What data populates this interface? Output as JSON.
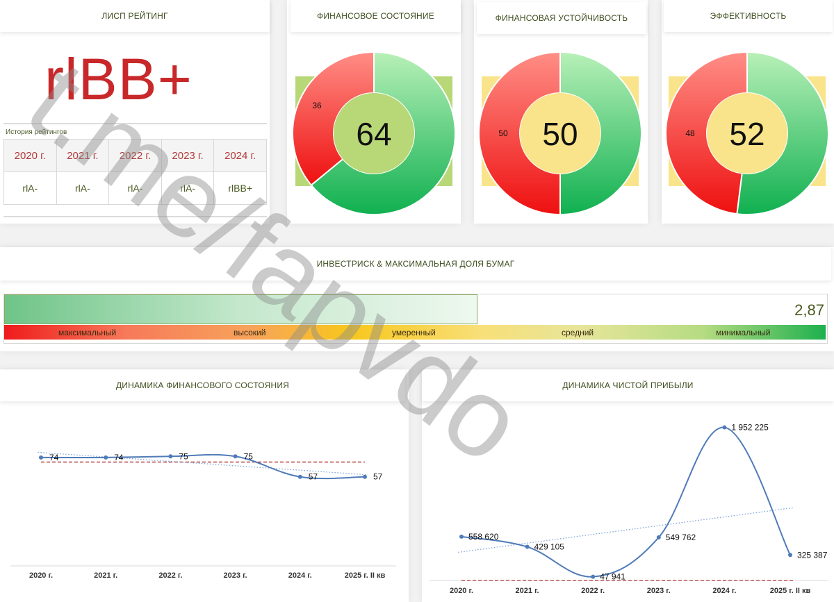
{
  "rating_panel": {
    "header": "ЛИСП РЕЙТИНГ",
    "current_rating": "rlBB+",
    "history_caption": "История рейтингов",
    "history": [
      {
        "year": "2020 г.",
        "rating": "rlA-"
      },
      {
        "year": "2021 г.",
        "rating": "rlA-"
      },
      {
        "year": "2022 г.",
        "rating": "rlA-"
      },
      {
        "year": "2023 г.",
        "rating": "rlA-"
      },
      {
        "year": "2024 г.",
        "rating": "rlBB+"
      }
    ]
  },
  "gauges": [
    {
      "header": "ФИНАНСОВОЕ СОСТОЯНИЕ",
      "score": "64",
      "remainder": "36",
      "score_value": 64,
      "center_color": "#b8d878",
      "back_color": "#b8d878"
    },
    {
      "header": "ФИНАНСОВАЯ УСТОЙЧИВОСТЬ",
      "score": "50",
      "remainder": "50",
      "score_value": 50,
      "center_color": "#f9e48b",
      "back_color": "#f9e48b"
    },
    {
      "header": "ЭФФЕКТИВНОСТЬ",
      "score": "52",
      "remainder": "48",
      "score_value": 52,
      "center_color": "#f9e48b",
      "back_color": "#f9e48b"
    }
  ],
  "risk": {
    "header": "ИНВЕСТРИСК & МАКСИМАЛЬНАЯ ДОЛЯ БУМАГ",
    "value": "2,87",
    "fill_fraction": 0.575,
    "levels": [
      "максимальный",
      "высокий",
      "умеренный",
      "средний",
      "минимальный"
    ]
  },
  "chart_data": [
    {
      "type": "line",
      "title": "ДИНАМИКА ФИНАНСОВОГО СОСТОЯНИЯ",
      "categories": [
        "2020 г.",
        "2021 г.",
        "2022 г.",
        "2023 г.",
        "2024 г.",
        "2025 г. II кв"
      ],
      "values": [
        74,
        74,
        75,
        75,
        57,
        57
      ],
      "labels": [
        "74",
        "74",
        "75",
        "75",
        "57",
        "57"
      ],
      "ylim": [
        0,
        110
      ],
      "reference_line": 70,
      "trendline": true,
      "xlabel": "",
      "ylabel": ""
    },
    {
      "type": "line",
      "title": "ДИНАМИКА ЧИСТОЙ ПРИБЫЛИ",
      "categories": [
        "2020 г.",
        "2021 г.",
        "2022 г.",
        "2023 г.",
        "2024 г.",
        "2025 г. II кв"
      ],
      "values": [
        558620,
        429105,
        47941,
        549762,
        1952225,
        325387
      ],
      "labels": [
        "558 620",
        "429 105",
        "47 941",
        "549 762",
        "1 952 225",
        "325 387"
      ],
      "ylim": [
        0,
        2400000
      ],
      "reference_line": 0,
      "trendline": true,
      "xlabel": "",
      "ylabel": ""
    }
  ],
  "watermark": "t.me/fapvdo",
  "colors": {
    "accent_red": "#c8282a",
    "line_blue": "#4f7bb8",
    "ref_red": "#b03030",
    "text_olive": "#4a5a1f"
  }
}
